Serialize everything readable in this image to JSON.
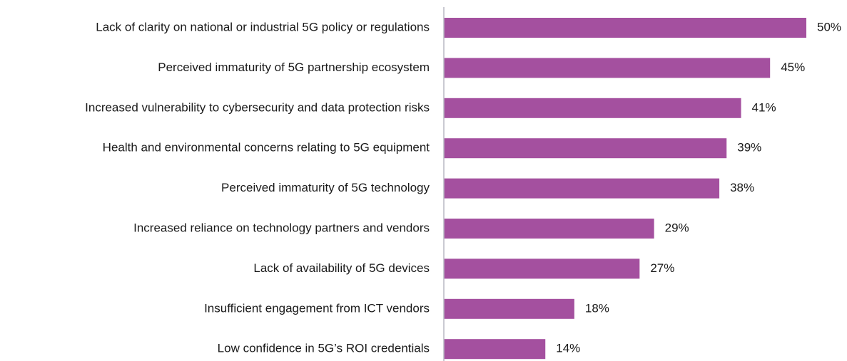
{
  "chart_data": {
    "type": "bar",
    "orientation": "horizontal",
    "categories": [
      "Lack of clarity on national or industrial 5G policy or regulations",
      "Perceived immaturity of 5G partnership ecosystem",
      "Increased vulnerability to cybersecurity and data protection risks",
      "Health and environmental concerns relating to 5G equipment",
      "Perceived immaturity of 5G technology",
      "Increased reliance on technology partners and vendors",
      "Lack of availability of 5G devices",
      "Insufficient engagement from ICT vendors",
      "Low confidence in 5G’s ROI credentials"
    ],
    "values": [
      50,
      45,
      41,
      39,
      38,
      29,
      27,
      18,
      14
    ],
    "value_labels": [
      "50%",
      "45%",
      "41%",
      "39%",
      "38%",
      "29%",
      "27%",
      "18%",
      "14%"
    ],
    "color": "#a4509f",
    "xlim": [
      0,
      50
    ]
  }
}
